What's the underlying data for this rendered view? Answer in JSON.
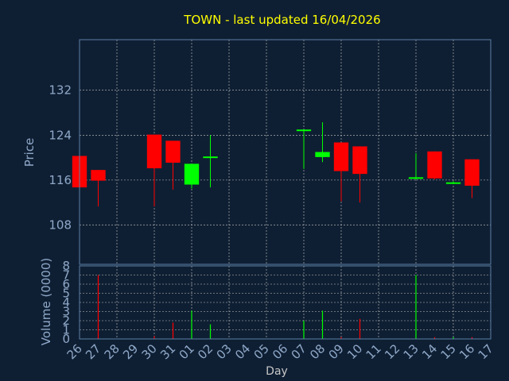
{
  "chart_data": {
    "type": "candlestick",
    "title": "TOWN - last updated 16/04/2026",
    "xlabel": "Day",
    "price_panel": {
      "ylabel": "Price",
      "yticks": [
        108,
        116,
        124,
        132
      ],
      "ylim": [
        101,
        141
      ]
    },
    "volume_panel": {
      "ylabel": "Volume (0000)",
      "yticks": [
        0,
        1,
        2,
        3,
        4,
        5,
        6,
        7,
        8
      ],
      "ylim": [
        0,
        8
      ]
    },
    "categories": [
      "26",
      "27",
      "28",
      "29",
      "30",
      "31",
      "01",
      "02",
      "03",
      "04",
      "05",
      "06",
      "07",
      "08",
      "09",
      "10",
      "11",
      "12",
      "13",
      "14",
      "15",
      "16",
      "17"
    ],
    "ohlc": [
      {
        "day": "26",
        "open": 120.3,
        "high": 120.3,
        "low": 114.7,
        "close": 114.7
      },
      {
        "day": "27",
        "open": 117.8,
        "high": 117.8,
        "low": 111.3,
        "close": 115.9
      },
      {
        "day": "30",
        "open": 124.1,
        "high": 124.1,
        "low": 111.3,
        "close": 118.1
      },
      {
        "day": "31",
        "open": 123.0,
        "high": 123.0,
        "low": 114.3,
        "close": 119.1
      },
      {
        "day": "01",
        "open": 115.2,
        "high": 118.9,
        "low": 114.5,
        "close": 118.9
      },
      {
        "day": "02",
        "open": 120.1,
        "high": 124.0,
        "low": 114.7,
        "close": 120.2
      },
      {
        "day": "07",
        "open": 124.9,
        "high": 125.0,
        "low": 118.0,
        "close": 125.0
      },
      {
        "day": "08",
        "open": 120.1,
        "high": 126.3,
        "low": 119.2,
        "close": 121.0
      },
      {
        "day": "09",
        "open": 122.7,
        "high": 122.7,
        "low": 112.2,
        "close": 117.6
      },
      {
        "day": "10",
        "open": 122.0,
        "high": 122.0,
        "low": 112.0,
        "close": 117.1
      },
      {
        "day": "13",
        "open": 116.3,
        "high": 120.8,
        "low": 116.1,
        "close": 116.5
      },
      {
        "day": "14",
        "open": 121.1,
        "high": 121.1,
        "low": 116.1,
        "close": 116.3
      },
      {
        "day": "15",
        "open": 115.4,
        "high": 115.8,
        "low": 115.3,
        "close": 115.6
      },
      {
        "day": "16",
        "open": 119.7,
        "high": 119.7,
        "low": 112.8,
        "close": 115.0
      }
    ],
    "volume": [
      {
        "day": "26",
        "value": 0.0
      },
      {
        "day": "27",
        "value": 7.0
      },
      {
        "day": "30",
        "value": 0.3
      },
      {
        "day": "31",
        "value": 1.8
      },
      {
        "day": "01",
        "value": 3.1
      },
      {
        "day": "02",
        "value": 1.6
      },
      {
        "day": "07",
        "value": 2.0
      },
      {
        "day": "08",
        "value": 3.1
      },
      {
        "day": "09",
        "value": 0.2
      },
      {
        "day": "10",
        "value": 2.2
      },
      {
        "day": "13",
        "value": 7.0
      },
      {
        "day": "14",
        "value": 0.2
      },
      {
        "day": "15",
        "value": 0.2
      },
      {
        "day": "16",
        "value": 0.2
      }
    ],
    "colors": {
      "up": "#00ff00",
      "down": "#ff0000",
      "background": "#0f1f33",
      "title": "#ffff00"
    },
    "grid": true
  }
}
